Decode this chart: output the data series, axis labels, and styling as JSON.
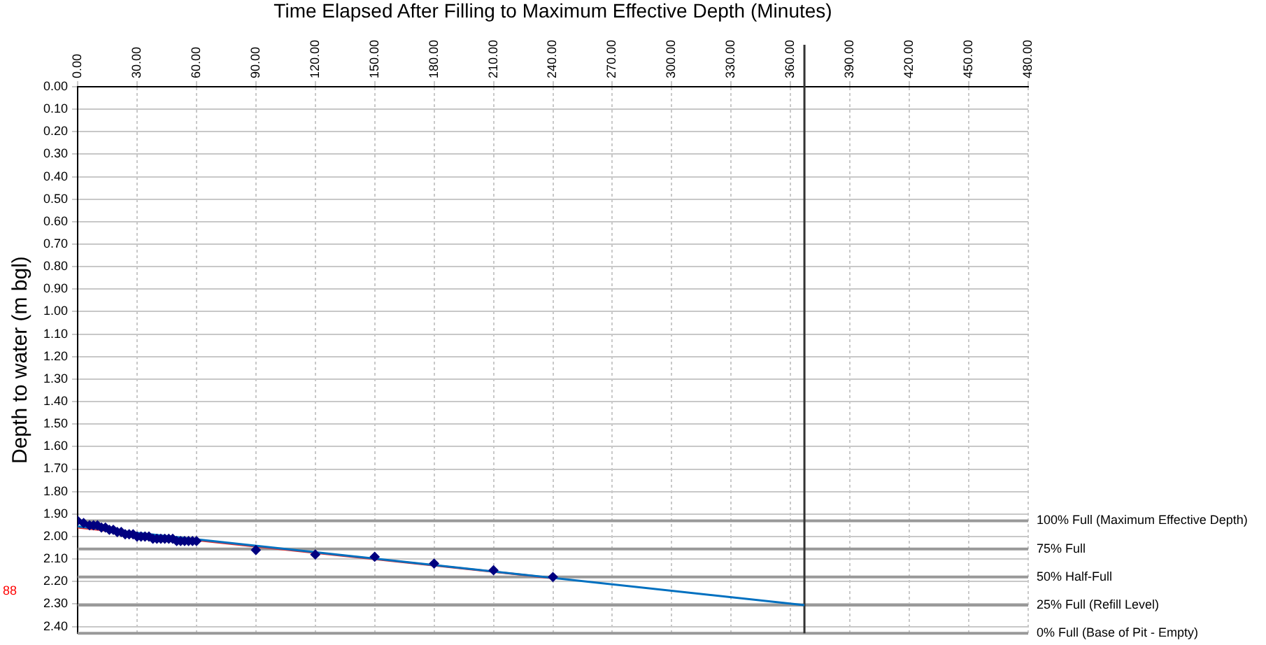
{
  "chart_data": {
    "type": "scatter",
    "xlabel": "Time Elapsed After Filling to Maximum Effective Depth (Minutes)",
    "ylabel": "Depth to water (m bgl)",
    "xlim": [
      0,
      480
    ],
    "xticks": [
      {
        "value": 0,
        "label": "0.00"
      },
      {
        "value": 30,
        "label": "30.00"
      },
      {
        "value": 60,
        "label": "60.00"
      },
      {
        "value": 90,
        "label": "90.00"
      },
      {
        "value": 120,
        "label": "120.00"
      },
      {
        "value": 150,
        "label": "150.00"
      },
      {
        "value": 180,
        "label": "180.00"
      },
      {
        "value": 210,
        "label": "210.00"
      },
      {
        "value": 240,
        "label": "240.00"
      },
      {
        "value": 270,
        "label": "270.00"
      },
      {
        "value": 300,
        "label": "300.00"
      },
      {
        "value": 330,
        "label": "330.00"
      },
      {
        "value": 360,
        "label": "360.00"
      },
      {
        "value": 390,
        "label": "390.00"
      },
      {
        "value": 420,
        "label": "420.00"
      },
      {
        "value": 450,
        "label": "450.00"
      },
      {
        "value": 480,
        "label": "480.00"
      }
    ],
    "ylim": [
      2.43,
      0
    ],
    "yticks": [
      {
        "value": 0,
        "label": "0.00"
      },
      {
        "value": 0.1,
        "label": "0.10"
      },
      {
        "value": 0.2,
        "label": "0.20"
      },
      {
        "value": 0.3,
        "label": "0.30"
      },
      {
        "value": 0.4,
        "label": "0.40"
      },
      {
        "value": 0.5,
        "label": "0.50"
      },
      {
        "value": 0.6,
        "label": "0.60"
      },
      {
        "value": 0.7,
        "label": "0.70"
      },
      {
        "value": 0.8,
        "label": "0.80"
      },
      {
        "value": 0.9,
        "label": "0.90"
      },
      {
        "value": 1,
        "label": "1.00"
      },
      {
        "value": 1.1,
        "label": "1.10"
      },
      {
        "value": 1.2,
        "label": "1.20"
      },
      {
        "value": 1.3,
        "label": "1.30"
      },
      {
        "value": 1.4,
        "label": "1.40"
      },
      {
        "value": 1.5,
        "label": "1.50"
      },
      {
        "value": 1.6,
        "label": "1.60"
      },
      {
        "value": 1.7,
        "label": "1.70"
      },
      {
        "value": 1.8,
        "label": "1.80"
      },
      {
        "value": 1.9,
        "label": "1.90"
      },
      {
        "value": 2,
        "label": "2.00"
      },
      {
        "value": 2.1,
        "label": "2.10"
      },
      {
        "value": 2.2,
        "label": "2.20"
      },
      {
        "value": 2.3,
        "label": "2.30"
      },
      {
        "value": 2.4,
        "label": "2.40"
      }
    ],
    "grid": true,
    "legend": false,
    "marker": "diamond",
    "series": [
      {
        "type": "line",
        "color": "#0070c0",
        "x": [
          0,
          367
        ],
        "values": [
          1.955,
          2.305
        ],
        "marker": "none"
      },
      {
        "type": "line",
        "color": "#e03030",
        "x": [
          0,
          240
        ],
        "values": [
          1.96,
          2.185
        ],
        "marker": "none"
      },
      {
        "type": "scatter",
        "color": "#000080",
        "x": [
          0,
          3,
          6,
          8,
          10,
          12,
          14,
          16,
          18,
          20,
          22,
          24,
          26,
          28,
          30,
          32,
          34,
          36,
          38,
          40,
          42,
          44,
          46,
          48,
          50,
          52,
          54,
          56,
          58,
          60,
          90,
          120,
          150,
          180,
          210,
          240
        ],
        "values": [
          1.93,
          1.94,
          1.95,
          1.95,
          1.95,
          1.96,
          1.96,
          1.97,
          1.97,
          1.98,
          1.98,
          1.99,
          1.99,
          1.99,
          2.0,
          2.0,
          2.0,
          2.0,
          2.01,
          2.01,
          2.01,
          2.01,
          2.01,
          2.01,
          2.02,
          2.02,
          2.02,
          2.02,
          2.02,
          2.02,
          2.06,
          2.08,
          2.09,
          2.12,
          2.15,
          2.18
        ]
      }
    ],
    "ref_lines": [
      {
        "axis": "y",
        "value": 1.93,
        "label": "100% Full (Maximum Effective Depth)",
        "color": "#999999"
      },
      {
        "axis": "y",
        "value": 2.055,
        "label": "75% Full",
        "color": "#999999"
      },
      {
        "axis": "y",
        "value": 2.18,
        "label": "50% Half-Full",
        "color": "#999999"
      },
      {
        "axis": "y",
        "value": 2.305,
        "label": "25% Full (Refill Level)",
        "color": "#999999"
      },
      {
        "axis": "y",
        "value": 2.43,
        "label": "0% Full (Base of Pit - Empty)",
        "color": "#999999"
      },
      {
        "axis": "x",
        "value": 367,
        "color": "#333333"
      }
    ],
    "annotations": [
      "88"
    ]
  }
}
